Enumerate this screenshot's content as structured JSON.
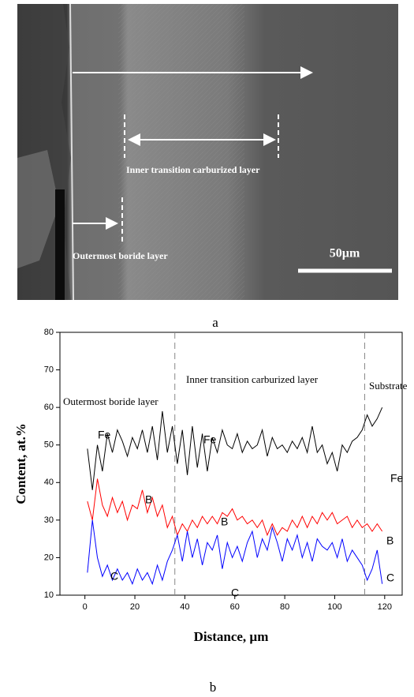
{
  "figure_a": {
    "labels": [
      "Inner transition carburized layer",
      "Outermost boride layer"
    ],
    "scale_bar": "50µm",
    "caption": "a"
  },
  "caption_b": "b",
  "chart_data": {
    "type": "line",
    "xlabel": "Distance, µm",
    "ylabel": "Content, at.%",
    "xlim": [
      -10,
      127
    ],
    "ylim": [
      10,
      80
    ],
    "xticks": [
      0,
      20,
      40,
      60,
      80,
      100,
      120
    ],
    "yticks": [
      10,
      20,
      30,
      40,
      50,
      60,
      70,
      80
    ],
    "vlines": [
      36,
      112
    ],
    "regions": [
      "Outermost boride layer",
      "Inner transition carburized layer",
      "Substrate"
    ],
    "annotations": [
      "Fe",
      "Fe",
      "Fe",
      "B",
      "B",
      "B",
      "C",
      "C",
      "C"
    ],
    "x": [
      1,
      3,
      5,
      7,
      9,
      11,
      13,
      15,
      17,
      19,
      21,
      23,
      25,
      27,
      29,
      31,
      33,
      35,
      37,
      39,
      41,
      43,
      45,
      47,
      49,
      51,
      53,
      55,
      57,
      59,
      61,
      63,
      65,
      67,
      69,
      71,
      73,
      75,
      77,
      79,
      81,
      83,
      85,
      87,
      89,
      91,
      93,
      95,
      97,
      99,
      101,
      103,
      105,
      107,
      109,
      111,
      113,
      115,
      117,
      119
    ],
    "series": [
      {
        "name": "Fe",
        "color": "#000000",
        "values": [
          49,
          38,
          50,
          43,
          53,
          48,
          54,
          51,
          47,
          52,
          49,
          54,
          48,
          55,
          46,
          59,
          48,
          55,
          45,
          54,
          42,
          55,
          44,
          53,
          43,
          52,
          48,
          54,
          50,
          49,
          53,
          48,
          51,
          49,
          50,
          54,
          47,
          52,
          49,
          50,
          48,
          51,
          49,
          52,
          48,
          55,
          48,
          50,
          45,
          48,
          43,
          50,
          48,
          51,
          52,
          54,
          58,
          55,
          57,
          60
        ]
      },
      {
        "name": "B",
        "color": "#ff0000",
        "values": [
          35,
          30,
          41,
          34,
          31,
          36,
          32,
          35,
          30,
          34,
          33,
          38,
          32,
          36,
          31,
          34,
          28,
          31,
          26,
          29,
          27,
          30,
          28,
          31,
          29,
          31,
          29,
          32,
          31,
          33,
          30,
          31,
          29,
          30,
          28,
          30,
          26,
          29,
          26,
          28,
          27,
          30,
          28,
          31,
          28,
          31,
          29,
          32,
          30,
          32,
          29,
          30,
          31,
          28,
          30,
          28,
          29,
          27,
          29,
          27
        ]
      },
      {
        "name": "C",
        "color": "#0000ff",
        "values": [
          16,
          30,
          20,
          15,
          18,
          14,
          17,
          14,
          16,
          13,
          17,
          14,
          16,
          13,
          18,
          14,
          19,
          22,
          26,
          19,
          27,
          20,
          25,
          18,
          24,
          22,
          26,
          17,
          24,
          20,
          23,
          19,
          24,
          27,
          20,
          25,
          22,
          28,
          24,
          19,
          25,
          22,
          26,
          20,
          24,
          19,
          25,
          23,
          22,
          24,
          20,
          25,
          19,
          22,
          20,
          18,
          14,
          17,
          22,
          13
        ]
      }
    ]
  }
}
